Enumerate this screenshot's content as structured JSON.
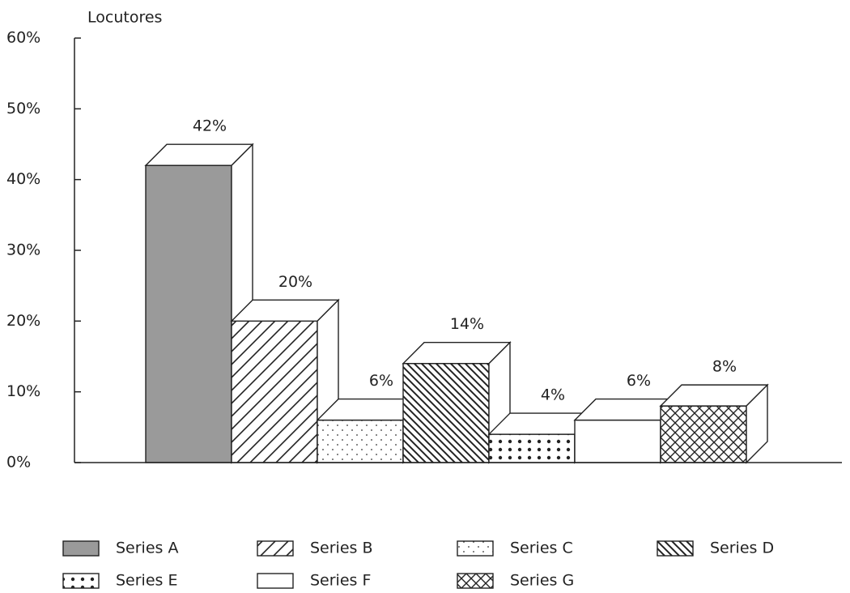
{
  "chart_data": {
    "type": "bar3d",
    "y_label": "Locutores",
    "ylim": [
      0,
      60
    ],
    "yticks": [
      {
        "value": 0,
        "label": "0%"
      },
      {
        "value": 10,
        "label": "10%"
      },
      {
        "value": 20,
        "label": "20%"
      },
      {
        "value": 30,
        "label": "30%"
      },
      {
        "value": 40,
        "label": "40%"
      },
      {
        "value": 50,
        "label": "50%"
      },
      {
        "value": 60,
        "label": "60%"
      }
    ],
    "series": [
      {
        "name": "Series A",
        "color": "#9a9a9a",
        "pattern": "solid",
        "values": [
          42
        ],
        "value_labels": [
          "42%"
        ]
      },
      {
        "name": "Series B",
        "color": "#ffffff",
        "pattern": "forward-hatch",
        "values": [
          20
        ],
        "value_labels": [
          "20%"
        ]
      },
      {
        "name": "Series C",
        "color": "#ffffff",
        "pattern": "sparse-dots",
        "values": [
          6
        ],
        "value_labels": [
          "6%"
        ]
      },
      {
        "name": "Series D",
        "color": "#ffffff",
        "pattern": "back-hatch",
        "values": [
          14
        ],
        "value_labels": [
          "14%"
        ]
      },
      {
        "name": "Series E",
        "color": "#ffffff",
        "pattern": "bold-dots",
        "values": [
          4
        ],
        "value_labels": [
          "4%"
        ]
      },
      {
        "name": "Series F",
        "color": "#ffffff",
        "pattern": "none",
        "values": [
          6
        ],
        "value_labels": [
          "6%"
        ]
      },
      {
        "name": "Series G",
        "color": "#ffffff",
        "pattern": "crosshatch",
        "values": [
          8
        ],
        "value_labels": [
          "8%"
        ]
      }
    ],
    "legend": "bottom"
  }
}
